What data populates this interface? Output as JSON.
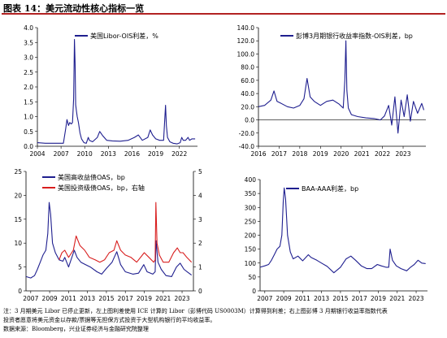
{
  "page": {
    "title": "图表 14：美元流动性核心指标一览",
    "footnote_lines": [
      "注：3 月期美元 Libor 已停止更新，左上图利差使用 ICE 计算的 Libor（彭博代码 US0003M）计算得到利差；右上图彭博 3 月期银行收益率指数代表",
      "投资者愿意将美元资金以存款/票据等无担保方式投资于大型机构银行的平均收益率。",
      "数据来源：Bloomberg，兴业证券经济与金融研究院整理"
    ]
  },
  "chart_data": [
    {
      "type": "line",
      "legend": [
        "美国Libor-OIS利差，%"
      ],
      "legend_position": "top-center",
      "x_ticks": [
        "2004",
        "2007",
        "2010",
        "2013",
        "2016",
        "2019",
        "2022"
      ],
      "x_range": [
        2004,
        2024.3
      ],
      "y_ticks": [
        "0.0",
        "0.5",
        "1.0",
        "1.5",
        "2.0",
        "2.5",
        "3.0",
        "3.5",
        "4.0"
      ],
      "ylim": [
        0,
        4
      ],
      "grid": false,
      "series": [
        {
          "name": "美国Libor-OIS利差，%",
          "color": "#1f1f8f",
          "x": [
            2004,
            2005,
            2006,
            2007.3,
            2007.6,
            2007.75,
            2007.95,
            2008.1,
            2008.3,
            2008.45,
            2008.6,
            2008.7,
            2008.78,
            2008.85,
            2008.95,
            2009.05,
            2009.2,
            2009.4,
            2009.6,
            2009.9,
            2010.2,
            2010.45,
            2010.6,
            2011,
            2011.6,
            2011.9,
            2012.3,
            2012.8,
            2013.5,
            2014.5,
            2015.5,
            2016.3,
            2016.8,
            2017.3,
            2018.0,
            2018.3,
            2018.6,
            2019.0,
            2019.5,
            2020.0,
            2020.15,
            2020.25,
            2020.35,
            2020.5,
            2020.8,
            2021.2,
            2021.7,
            2022.1,
            2022.3,
            2022.5,
            2022.8,
            2023.1,
            2023.3,
            2023.6,
            2024.0
          ],
          "y": [
            0.12,
            0.1,
            0.1,
            0.1,
            0.6,
            0.9,
            0.7,
            0.8,
            0.75,
            0.8,
            1.6,
            3.6,
            2.8,
            1.4,
            1.2,
            1.0,
            0.8,
            0.45,
            0.25,
            0.12,
            0.1,
            0.3,
            0.2,
            0.15,
            0.3,
            0.5,
            0.35,
            0.2,
            0.18,
            0.17,
            0.2,
            0.3,
            0.38,
            0.2,
            0.3,
            0.55,
            0.38,
            0.25,
            0.2,
            0.2,
            0.9,
            1.38,
            0.7,
            0.3,
            0.15,
            0.1,
            0.08,
            0.12,
            0.3,
            0.2,
            0.2,
            0.3,
            0.2,
            0.25,
            0.25
          ]
        }
      ]
    },
    {
      "type": "line",
      "legend": [
        "彭博3月期银行收益率指数-OIS利差，bp"
      ],
      "legend_position": "top-center",
      "x_ticks": [
        "2016",
        "2017",
        "2018",
        "2019",
        "2020",
        "2021",
        "2022",
        "2023"
      ],
      "x_range": [
        2016,
        2024.1
      ],
      "y_ticks": [
        "-40.0",
        "-20.0",
        "0.0",
        "20.0",
        "40.0",
        "60.0",
        "80.0",
        "100.0",
        "120.0",
        "140.0"
      ],
      "ylim": [
        -40,
        140
      ],
      "grid": false,
      "series": [
        {
          "name": "彭博3月期银行收益率指数-OIS利差，bp",
          "color": "#1f1f8f",
          "x": [
            2016,
            2016.3,
            2016.6,
            2016.75,
            2016.9,
            2017.1,
            2017.4,
            2017.7,
            2018.0,
            2018.2,
            2018.35,
            2018.5,
            2018.7,
            2019.0,
            2019.3,
            2019.6,
            2019.9,
            2020.1,
            2020.18,
            2020.23,
            2020.28,
            2020.35,
            2020.5,
            2020.8,
            2021.2,
            2021.6,
            2021.9,
            2022.1,
            2022.3,
            2022.45,
            2022.6,
            2022.75,
            2022.9,
            2023.05,
            2023.2,
            2023.35,
            2023.5,
            2023.7,
            2023.9,
            2024.0
          ],
          "y": [
            20,
            22,
            30,
            44,
            28,
            25,
            20,
            18,
            22,
            32,
            63,
            35,
            28,
            22,
            28,
            30,
            24,
            18,
            60,
            120,
            45,
            18,
            8,
            5,
            3,
            2,
            0,
            6,
            22,
            -8,
            35,
            -20,
            30,
            5,
            38,
            -2,
            28,
            10,
            25,
            15
          ]
        }
      ]
    },
    {
      "type": "line",
      "legend": [
        "美国高收益债OAS，bp",
        "美国投资级债OAS，bp，右轴"
      ],
      "legend_position": "top-left",
      "x_ticks": [
        "2007",
        "2009",
        "2011",
        "2013",
        "2015",
        "2017",
        "2019",
        "2021",
        "2023"
      ],
      "x_range": [
        2006.5,
        2024.2
      ],
      "y_ticks_left": [
        "0",
        "5",
        "10",
        "15",
        "20",
        "25"
      ],
      "ylim_left": [
        0,
        25
      ],
      "y_ticks_right": [
        "0",
        "1",
        "2",
        "3",
        "4",
        "5"
      ],
      "ylim_right": [
        0,
        5
      ],
      "grid": false,
      "series": [
        {
          "name": "美国高收益债OAS，bp",
          "color": "#1f1f8f",
          "axis": "left",
          "x": [
            2006.5,
            2007.0,
            2007.4,
            2007.7,
            2008.0,
            2008.3,
            2008.6,
            2008.8,
            2008.95,
            2009.1,
            2009.3,
            2009.6,
            2010.0,
            2010.4,
            2010.6,
            2011.0,
            2011.6,
            2011.9,
            2012.3,
            2012.8,
            2013.3,
            2014.0,
            2014.5,
            2015.0,
            2015.6,
            2016.1,
            2016.5,
            2017.0,
            2017.8,
            2018.4,
            2018.95,
            2019.3,
            2019.9,
            2020.15,
            2020.25,
            2020.45,
            2020.8,
            2021.3,
            2021.9,
            2022.4,
            2022.8,
            2023.2,
            2023.6,
            2024.0
          ],
          "y": [
            3.0,
            2.7,
            3.2,
            4.5,
            6.0,
            7.5,
            8.5,
            12,
            18.5,
            16,
            10,
            8,
            6.5,
            6.2,
            7.0,
            5.0,
            8.5,
            7.0,
            6.0,
            5.5,
            5.0,
            4.0,
            3.5,
            4.7,
            6.0,
            8.2,
            5.5,
            4.0,
            3.5,
            3.7,
            5.5,
            4.0,
            3.5,
            4.0,
            10.5,
            6.0,
            4.5,
            3.2,
            3.0,
            5.0,
            5.8,
            4.5,
            3.9,
            3.3
          ]
        },
        {
          "name": "美国投资级债OAS，bp，右轴",
          "color": "#d81e1e",
          "axis": "right",
          "x": [
            2010.0,
            2010.3,
            2010.6,
            2011.0,
            2011.5,
            2011.8,
            2012.2,
            2012.7,
            2013.2,
            2013.8,
            2014.3,
            2014.8,
            2015.3,
            2015.8,
            2016.1,
            2016.5,
            2017.0,
            2017.6,
            2018.2,
            2018.8,
            2019.0,
            2019.5,
            2020.0,
            2020.15,
            2020.23,
            2020.35,
            2020.6,
            2021.0,
            2021.6,
            2022.1,
            2022.5,
            2022.8,
            2023.1,
            2023.5,
            2024.0
          ],
          "y": [
            1.3,
            1.6,
            1.7,
            1.4,
            1.7,
            2.3,
            1.9,
            1.7,
            1.4,
            1.3,
            1.2,
            1.3,
            1.6,
            1.7,
            2.1,
            1.7,
            1.5,
            1.4,
            1.2,
            1.5,
            1.6,
            1.4,
            1.2,
            1.3,
            3.7,
            2.0,
            1.5,
            1.2,
            1.2,
            1.6,
            1.8,
            1.6,
            1.6,
            1.4,
            1.2
          ]
        }
      ]
    },
    {
      "type": "line",
      "legend": [
        "BAA-AAA利差，bp"
      ],
      "legend_position": "top-center",
      "x_ticks": [
        "2007",
        "2009",
        "2011",
        "2013",
        "2015",
        "2017",
        "2019",
        "2021",
        "2023"
      ],
      "x_range": [
        2006.5,
        2024.2
      ],
      "y_ticks": [
        "0",
        "50",
        "100",
        "150",
        "200",
        "250",
        "300",
        "350",
        "400"
      ],
      "ylim": [
        0,
        400
      ],
      "grid": false,
      "series": [
        {
          "name": "BAA-AAA利差，bp",
          "color": "#1f1f8f",
          "x": [
            2006.5,
            2007.0,
            2007.4,
            2007.7,
            2008.0,
            2008.3,
            2008.6,
            2008.8,
            2008.95,
            2009.05,
            2009.2,
            2009.4,
            2009.7,
            2010.0,
            2010.5,
            2011.0,
            2011.6,
            2011.9,
            2012.5,
            2013.0,
            2013.6,
            2014.3,
            2015.0,
            2015.6,
            2016.1,
            2016.6,
            2017.2,
            2017.8,
            2018.3,
            2018.9,
            2019.3,
            2019.8,
            2020.1,
            2020.25,
            2020.5,
            2020.9,
            2021.4,
            2022.0,
            2022.4,
            2022.8,
            2023.2,
            2023.6,
            2024.0
          ],
          "y": [
            85,
            90,
            95,
            110,
            130,
            150,
            160,
            200,
            320,
            370,
            330,
            200,
            140,
            115,
            125,
            108,
            130,
            120,
            110,
            100,
            88,
            65,
            85,
            115,
            125,
            110,
            90,
            80,
            80,
            95,
            90,
            85,
            85,
            150,
            110,
            90,
            80,
            72,
            85,
            95,
            110,
            100,
            98
          ]
        }
      ]
    }
  ]
}
